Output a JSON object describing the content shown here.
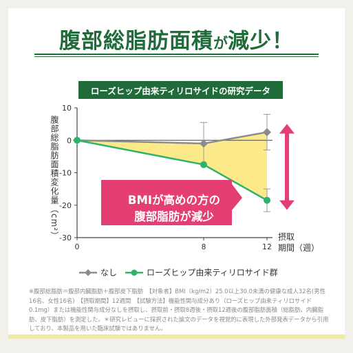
{
  "headline": {
    "main": "腹部総脂肪面積",
    "particle": "が",
    "tail": "減少！"
  },
  "banner": "ローズヒップ由来ティリロサイドの研究データ",
  "callout": {
    "line1": "BMIが高めの方の",
    "line2": "腹部脂肪が減少"
  },
  "chart_data": {
    "type": "line",
    "x": [
      0,
      8,
      12
    ],
    "xticks": [
      "0",
      "8",
      "12"
    ],
    "xlabel": "摂取期間（週）",
    "xlabel_line1": "摂取",
    "xlabel_line2": "期間（週）",
    "ylabel": "腹部総脂肪面積変化量（cm²）",
    "ylim": [
      -30,
      10
    ],
    "yticks": [
      "10",
      "0",
      "-10",
      "-20",
      "-30"
    ],
    "series": [
      {
        "name": "なし",
        "values": [
          0,
          -1.0,
          2.5
        ],
        "errors": [
          0,
          6.5,
          5.5
        ],
        "color": "#8c8c8c",
        "marker": "diamond"
      },
      {
        "name": "ローズヒップ由来ティリロサイド群",
        "values": [
          0,
          -7.5,
          -18.5
        ],
        "errors": [
          0,
          0,
          3.5
        ],
        "color": "#2db36b",
        "marker": "circle"
      }
    ],
    "fill_between_color": "#fbe98a",
    "callout_color": "#e53e72"
  },
  "footnote": "※腹部総脂肪＝腹部内臓脂肪＋腹部皮下脂肪　【対象者】BMI（kg/m2）25.0以上30.0未満の健康な成人32名(男性16名、女性16名)　【摂取期間】12週間　【試験方法】機能性関与成分あり（ローズヒップ由来ティリロサイド0.1mg）または機能性関与成分なしを摂取し、摂取前・摂取8週後・摂取12週後の腹部脂肪面積（総脂肪、内臓脂肪、皮下脂肪）を測定した。＊研究レビューに採択された論文のデータを視覚的に表現した外部発表データから引用しており、本製品を用いた臨床試験ではありません。"
}
